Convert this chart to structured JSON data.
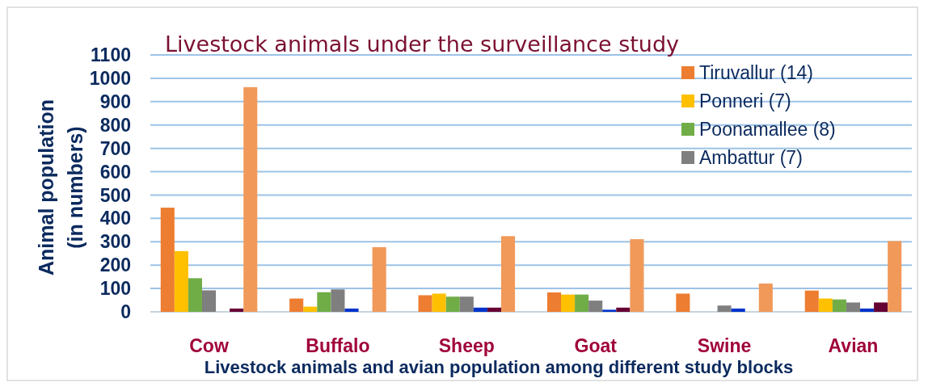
{
  "chart_data": {
    "type": "bar",
    "title": "Livestock animals under the surveillance study",
    "xlabel": "Livestock animals and avian population among different study blocks",
    "ylabel": "Animal population\n(in numbers)",
    "categories": [
      "Cow",
      "Buffalo",
      "Sheep",
      "Goat",
      "Swine",
      "Avian"
    ],
    "series": [
      {
        "name": "Tiruvallur (14)",
        "color": "#ed7d31",
        "values": [
          446,
          57,
          71,
          83,
          78,
          91
        ]
      },
      {
        "name": "Ponneri (7)",
        "color": "#ffc000",
        "values": [
          260,
          22,
          78,
          74,
          0,
          57
        ]
      },
      {
        "name": "Poonamallee (8)",
        "color": "#70ad47",
        "values": [
          144,
          84,
          65,
          74,
          0,
          53
        ]
      },
      {
        "name": "Ambattur (7)",
        "color": "#7f7f7f",
        "values": [
          92,
          96,
          65,
          48,
          27,
          40
        ]
      },
      {
        "color": "#0033cc",
        "values": [
          0,
          14,
          18,
          9,
          14,
          14
        ]
      },
      {
        "color": "#660033",
        "values": [
          14,
          0,
          18,
          18,
          0,
          40
        ]
      },
      {
        "color": "#f19959",
        "values": [
          962,
          277,
          324,
          311,
          121,
          303
        ]
      }
    ],
    "ylim": [
      0,
      1100
    ],
    "yticks": [
      0,
      100,
      200,
      300,
      400,
      500,
      600,
      700,
      800,
      900,
      1000,
      1100
    ],
    "grid": "y",
    "legend": "top right"
  }
}
